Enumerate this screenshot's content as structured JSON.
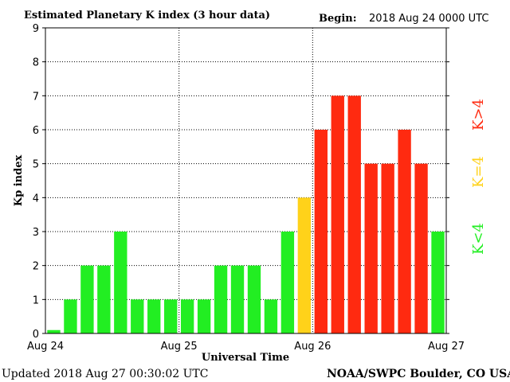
{
  "chart_data": {
    "type": "bar",
    "title": "Estimated Planetary K index (3 hour data)",
    "begin_label": "Begin:",
    "begin_value": "2018 Aug 24 0000 UTC",
    "xlabel": "Universal Time",
    "ylabel": "Kp index",
    "ylim": [
      0,
      9
    ],
    "yticks": [
      "0",
      "1",
      "2",
      "3",
      "4",
      "5",
      "6",
      "7",
      "8",
      "9"
    ],
    "xticks": [
      "Aug 24",
      "Aug 25",
      "Aug 26",
      "Aug 27"
    ],
    "grid": true,
    "legend_placement": "right",
    "values": [
      0.1,
      1,
      2,
      2,
      3,
      1,
      1,
      1,
      1,
      1,
      2,
      2,
      2,
      1,
      3,
      4,
      6,
      7,
      7,
      5,
      5,
      6,
      5,
      3
    ],
    "colors": {
      "low": "#22ee22",
      "mid": "#ffd21a",
      "high": "#ff2a10"
    },
    "legend": [
      {
        "label": "K<4",
        "color": "#22ee22"
      },
      {
        "label": "K=4",
        "color": "#ffd21a"
      },
      {
        "label": "K>4",
        "color": "#ff2a10"
      }
    ],
    "footer_left": "Updated 2018 Aug 27 00:30:02 UTC",
    "footer_right": "NOAA/SWPC Boulder, CO USA"
  }
}
